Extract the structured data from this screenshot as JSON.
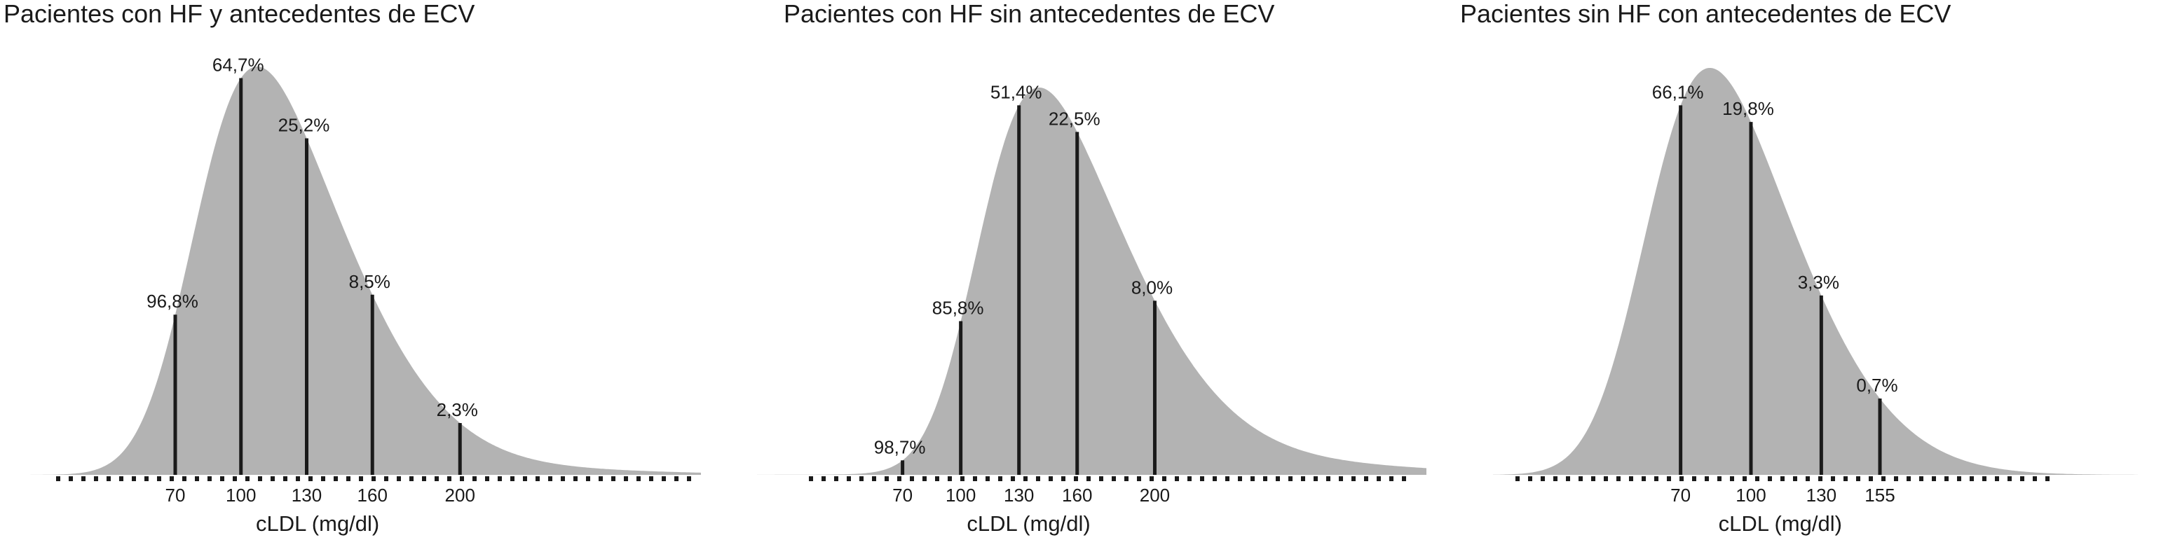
{
  "chart_data": [
    {
      "type": "area",
      "title": "Pacientes con HF y antecedentes de ECV",
      "xlabel": "cLDL (mg/dl)",
      "ylabel": "",
      "xlim": [
        -10,
        310
      ],
      "ylim": [
        0,
        1
      ],
      "grid": false,
      "legend": "none",
      "ticks": [
        70,
        100,
        130,
        160,
        200
      ],
      "tick_labels": [
        "70",
        "100",
        "130",
        "160",
        "200"
      ],
      "markers": [
        {
          "x": 70,
          "label": "96,8%"
        },
        {
          "x": 100,
          "label": "64,7%"
        },
        {
          "x": 130,
          "label": "25,2%"
        },
        {
          "x": 160,
          "label": "8,5%"
        },
        {
          "x": 200,
          "label": "2,3%"
        }
      ]
    },
    {
      "type": "area",
      "title": "Pacientes con HF sin antecedentes de ECV",
      "xlabel": "cLDL (mg/dl)",
      "ylabel": "",
      "xlim": [
        -5,
        340
      ],
      "ylim": [
        0,
        1
      ],
      "grid": false,
      "legend": "none",
      "ticks": [
        70,
        100,
        130,
        160,
        200
      ],
      "tick_labels": [
        "70",
        "100",
        "130",
        "160",
        "200"
      ],
      "markers": [
        {
          "x": 70,
          "label": "98,7%"
        },
        {
          "x": 100,
          "label": "85,8%"
        },
        {
          "x": 130,
          "label": "51,4%"
        },
        {
          "x": 160,
          "label": "22,5%"
        },
        {
          "x": 200,
          "label": "8,0%"
        }
      ]
    },
    {
      "type": "area",
      "title": "Pacientes sin HF con antecedentes de ECV",
      "xlabel": "cLDL (mg/dl)",
      "ylabel": "",
      "xlim": [
        -10,
        265
      ],
      "ylim": [
        0,
        1
      ],
      "grid": false,
      "legend": "none",
      "ticks": [
        70,
        100,
        130,
        155
      ],
      "tick_labels": [
        "70",
        "100",
        "130",
        "155"
      ],
      "markers": [
        {
          "x": 70,
          "label": "66,1%"
        },
        {
          "x": 100,
          "label": "19,8%"
        },
        {
          "x": 130,
          "label": "3,3%"
        },
        {
          "x": 155,
          "label": "0,7%"
        }
      ]
    }
  ],
  "colors": {
    "area_fill": "#b3b3b3",
    "marker_line": "#1a1a1a",
    "text": "#1a1a1a"
  }
}
